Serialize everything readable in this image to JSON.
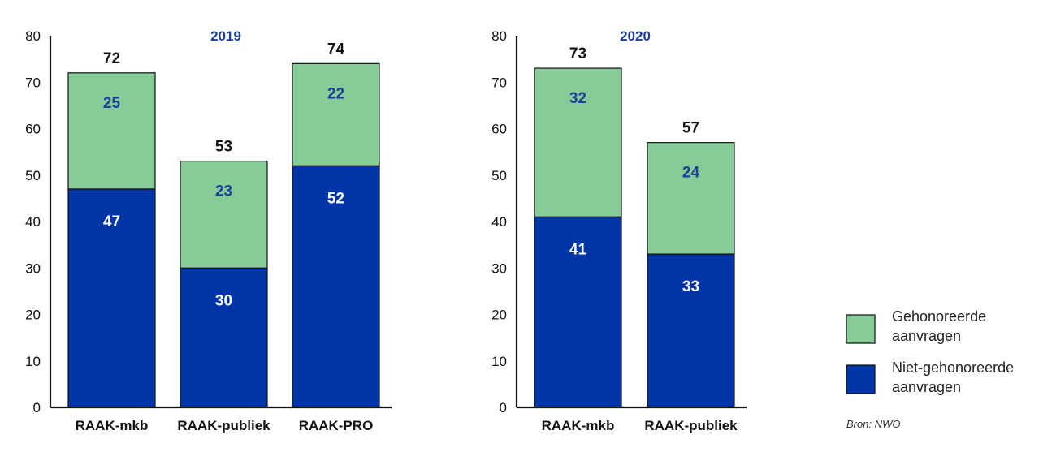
{
  "colors": {
    "gehonoreerd": "#85cc98",
    "niet_gehonoreerd": "#0035a8",
    "year_title": "#1d3f9a",
    "gehonoreerd_label": "#1d3f9a",
    "niet_label": "#ffffff",
    "outline": "#111111"
  },
  "legend": {
    "position": "bottom-right",
    "items": [
      {
        "line1": "Gehonoreerde",
        "line2": "aanvragen",
        "color_key": "gehonoreerd"
      },
      {
        "line1": "Niet-gehonoreerde",
        "line2": "aanvragen",
        "color_key": "niet_gehonoreerd"
      }
    ]
  },
  "source": "Bron: NWO",
  "chart_data": [
    {
      "type": "bar",
      "stacked": true,
      "title": "2019",
      "ylim": [
        0,
        80
      ],
      "yticks": [
        0,
        10,
        20,
        30,
        40,
        50,
        60,
        70,
        80
      ],
      "grid": false,
      "categories": [
        "RAAK-mkb",
        "RAAK-publiek",
        "RAAK-PRO"
      ],
      "totals": [
        72,
        53,
        74
      ],
      "series": [
        {
          "name": "Niet-gehonoreerde aanvragen",
          "values": [
            47,
            30,
            52
          ]
        },
        {
          "name": "Gehonoreerde aanvragen",
          "values": [
            25,
            23,
            22
          ]
        }
      ]
    },
    {
      "type": "bar",
      "stacked": true,
      "title": "2020",
      "ylim": [
        0,
        80
      ],
      "yticks": [
        0,
        10,
        20,
        30,
        40,
        50,
        60,
        70,
        80
      ],
      "grid": false,
      "categories": [
        "RAAK-mkb",
        "RAAK-publiek"
      ],
      "totals": [
        73,
        57
      ],
      "series": [
        {
          "name": "Niet-gehonoreerde aanvragen",
          "values": [
            41,
            33
          ]
        },
        {
          "name": "Gehonoreerde aanvragen",
          "values": [
            32,
            24
          ]
        }
      ]
    }
  ]
}
